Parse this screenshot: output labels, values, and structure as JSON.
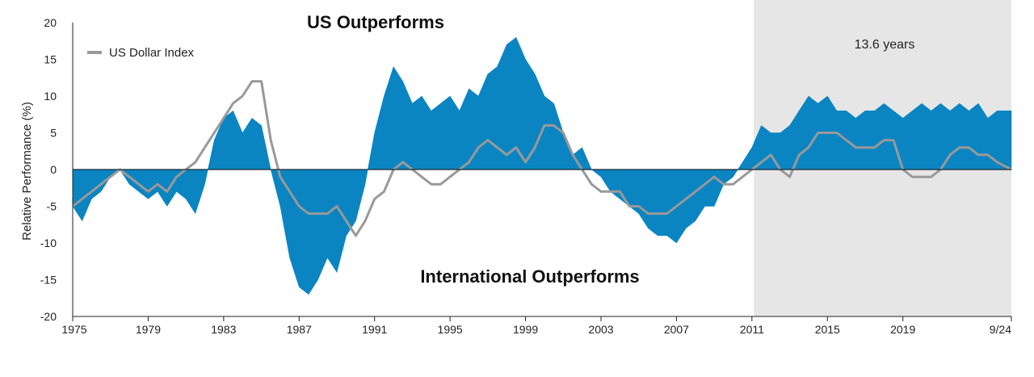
{
  "chart_data": {
    "type": "area",
    "title": "",
    "xlabel": "",
    "ylabel": "Relative Performance (%)",
    "xlim": [
      1975,
      2024.75
    ],
    "ylim": [
      -20,
      20
    ],
    "y_ticks": [
      20,
      15,
      10,
      5,
      0,
      -5,
      -10,
      -15,
      -20
    ],
    "x_tick_labels": [
      "1975",
      "1979",
      "1983",
      "1987",
      "1991",
      "1995",
      "1999",
      "2003",
      "2007",
      "2011",
      "2015",
      "2019",
      "9/24"
    ],
    "x_tick_values": [
      1975,
      1979,
      1983,
      1987,
      1991,
      1995,
      1999,
      2003,
      2007,
      2011,
      2015,
      2019,
      2024.75
    ],
    "annotations": {
      "top": "US Outperforms",
      "bottom": "International Outperforms",
      "shaded_period": "13.6 years"
    },
    "shaded_region": [
      2011.1,
      2024.75
    ],
    "legend": {
      "label": "US Dollar Index",
      "position": "top-left"
    },
    "colors": {
      "area": "#0a85c2",
      "line": "#999999",
      "shade": "#e6e6e6",
      "axis": "#222222"
    },
    "series": [
      {
        "name": "Relative Performance (US minus International)",
        "kind": "area",
        "x": [
          1975.0,
          1975.5,
          1976.0,
          1976.5,
          1977.0,
          1977.5,
          1978.0,
          1978.5,
          1979.0,
          1979.5,
          1980.0,
          1980.5,
          1981.0,
          1981.5,
          1982.0,
          1982.5,
          1983.0,
          1983.5,
          1984.0,
          1984.5,
          1985.0,
          1985.5,
          1986.0,
          1986.5,
          1987.0,
          1987.5,
          1988.0,
          1988.5,
          1989.0,
          1989.5,
          1990.0,
          1990.5,
          1991.0,
          1991.5,
          1992.0,
          1992.5,
          1993.0,
          1993.5,
          1994.0,
          1994.5,
          1995.0,
          1995.5,
          1996.0,
          1996.5,
          1997.0,
          1997.5,
          1998.0,
          1998.5,
          1999.0,
          1999.5,
          2000.0,
          2000.5,
          2001.0,
          2001.5,
          2002.0,
          2002.5,
          2003.0,
          2003.5,
          2004.0,
          2004.5,
          2005.0,
          2005.5,
          2006.0,
          2006.5,
          2007.0,
          2007.5,
          2008.0,
          2008.5,
          2009.0,
          2009.5,
          2010.0,
          2010.5,
          2011.0,
          2011.5,
          2012.0,
          2012.5,
          2013.0,
          2013.5,
          2014.0,
          2014.5,
          2015.0,
          2015.5,
          2016.0,
          2016.5,
          2017.0,
          2017.5,
          2018.0,
          2018.5,
          2019.0,
          2019.5,
          2020.0,
          2020.5,
          2021.0,
          2021.5,
          2022.0,
          2022.5,
          2023.0,
          2023.5,
          2024.0,
          2024.75
        ],
        "values": [
          -5,
          -7,
          -4,
          -3,
          -1,
          0,
          -2,
          -3,
          -4,
          -3,
          -5,
          -3,
          -4,
          -6,
          -2,
          4,
          7,
          8,
          5,
          7,
          6,
          0,
          -5,
          -12,
          -16,
          -17,
          -15,
          -12,
          -14,
          -9,
          -7,
          -2,
          5,
          10,
          14,
          12,
          9,
          10,
          8,
          9,
          10,
          8,
          11,
          10,
          13,
          14,
          17,
          18,
          15,
          13,
          10,
          9,
          5,
          2,
          3,
          0,
          -1,
          -3,
          -4,
          -5,
          -6,
          -8,
          -9,
          -9,
          -10,
          -8,
          -7,
          -5,
          -5,
          -2,
          -1,
          1,
          3,
          6,
          5,
          5,
          6,
          8,
          10,
          9,
          10,
          8,
          8,
          7,
          8,
          8,
          9,
          8,
          7,
          8,
          9,
          8,
          9,
          8,
          9,
          8,
          9,
          7,
          8,
          8
        ]
      },
      {
        "name": "US Dollar Index",
        "kind": "line",
        "x": [
          1975.0,
          1975.5,
          1976.0,
          1976.5,
          1977.0,
          1977.5,
          1978.0,
          1978.5,
          1979.0,
          1979.5,
          1980.0,
          1980.5,
          1981.0,
          1981.5,
          1982.0,
          1982.5,
          1983.0,
          1983.5,
          1984.0,
          1984.5,
          1985.0,
          1985.5,
          1986.0,
          1986.5,
          1987.0,
          1987.5,
          1988.0,
          1988.5,
          1989.0,
          1989.5,
          1990.0,
          1990.5,
          1991.0,
          1991.5,
          1992.0,
          1992.5,
          1993.0,
          1993.5,
          1994.0,
          1994.5,
          1995.0,
          1995.5,
          1996.0,
          1996.5,
          1997.0,
          1997.5,
          1998.0,
          1998.5,
          1999.0,
          1999.5,
          2000.0,
          2000.5,
          2001.0,
          2001.5,
          2002.0,
          2002.5,
          2003.0,
          2003.5,
          2004.0,
          2004.5,
          2005.0,
          2005.5,
          2006.0,
          2006.5,
          2007.0,
          2007.5,
          2008.0,
          2008.5,
          2009.0,
          2009.5,
          2010.0,
          2010.5,
          2011.0,
          2011.5,
          2012.0,
          2012.5,
          2013.0,
          2013.5,
          2014.0,
          2014.5,
          2015.0,
          2015.5,
          2016.0,
          2016.5,
          2017.0,
          2017.5,
          2018.0,
          2018.5,
          2019.0,
          2019.5,
          2020.0,
          2020.5,
          2021.0,
          2021.5,
          2022.0,
          2022.5,
          2023.0,
          2023.5,
          2024.0,
          2024.75
        ],
        "values": [
          -5,
          -4,
          -3,
          -2,
          -1,
          0,
          -1,
          -2,
          -3,
          -2,
          -3,
          -1,
          0,
          1,
          3,
          5,
          7,
          9,
          10,
          12,
          12,
          4,
          -1,
          -3,
          -5,
          -6,
          -6,
          -6,
          -5,
          -7,
          -9,
          -7,
          -4,
          -3,
          0,
          1,
          0,
          -1,
          -2,
          -2,
          -1,
          0,
          1,
          3,
          4,
          3,
          2,
          3,
          1,
          3,
          6,
          6,
          5,
          2,
          0,
          -2,
          -3,
          -3,
          -3,
          -5,
          -5,
          -6,
          -6,
          -6,
          -5,
          -4,
          -3,
          -2,
          -1,
          -2,
          -2,
          -1,
          0,
          1,
          2,
          0,
          -1,
          2,
          3,
          5,
          5,
          5,
          4,
          3,
          3,
          3,
          4,
          4,
          0,
          -1,
          -1,
          -1,
          0,
          2,
          3,
          3,
          2,
          2,
          1,
          0
        ]
      }
    ]
  }
}
